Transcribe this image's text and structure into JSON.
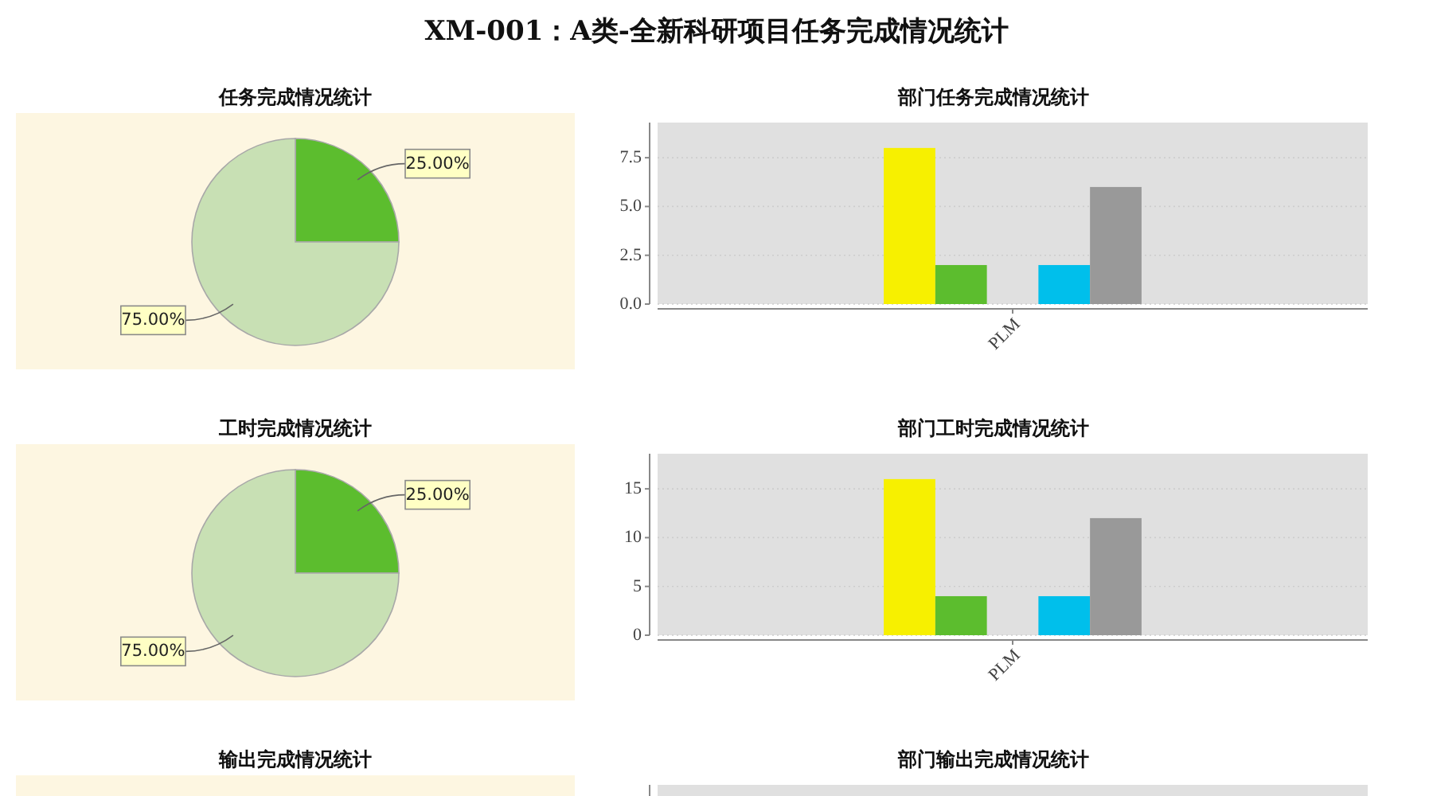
{
  "chart_data": [
    {
      "type": "other",
      "title": "XM-001：A类-全新科研项目任务完成情况统计"
    },
    {
      "type": "pie",
      "title": "任务完成情况统计",
      "categories": [
        null,
        null
      ],
      "values": [
        25,
        75
      ],
      "colors": [
        "#5cbd2e",
        "#c8e0b4"
      ],
      "value_labels": [
        "25.00%",
        "75.00%"
      ]
    },
    {
      "type": "bar",
      "title": "部门任务完成情况统计",
      "categories": [
        "PLM"
      ],
      "series": [
        {
          "color": "#f7f000",
          "values": [
            8
          ]
        },
        {
          "color": "#5cbd2e",
          "values": [
            2
          ]
        },
        {
          "values": [
            null
          ]
        },
        {
          "color": "#00bfeb",
          "values": [
            2
          ]
        },
        {
          "color": "#999999",
          "values": [
            6
          ]
        }
      ],
      "ylim": [
        0,
        9.3
      ],
      "yticks": [
        {
          "value": 0,
          "label": "0.0"
        },
        2.5,
        {
          "value": 5,
          "label": "5.0"
        },
        7.5
      ],
      "grid": "y"
    },
    {
      "type": "pie",
      "title": "工时完成情况统计",
      "categories": [
        null,
        null
      ],
      "values": [
        25,
        75
      ],
      "colors": [
        "#5cbd2e",
        "#c8e0b4"
      ],
      "value_labels": [
        "25.00%",
        "75.00%"
      ]
    },
    {
      "type": "bar",
      "title": "部门工时完成情况统计",
      "categories": [
        "PLM"
      ],
      "series": [
        {
          "color": "#f7f000",
          "values": [
            16
          ]
        },
        {
          "color": "#5cbd2e",
          "values": [
            4
          ]
        },
        {
          "values": [
            null
          ]
        },
        {
          "color": "#00bfeb",
          "values": [
            4
          ]
        },
        {
          "color": "#999999",
          "values": [
            12
          ]
        }
      ],
      "ylim": [
        0,
        18.6
      ],
      "yticks": [
        0,
        5,
        10,
        15
      ],
      "grid": "y"
    },
    {
      "type": "other",
      "title": "输出完成情况统计"
    },
    {
      "type": "other",
      "title": "部门输出完成情况统计"
    }
  ]
}
